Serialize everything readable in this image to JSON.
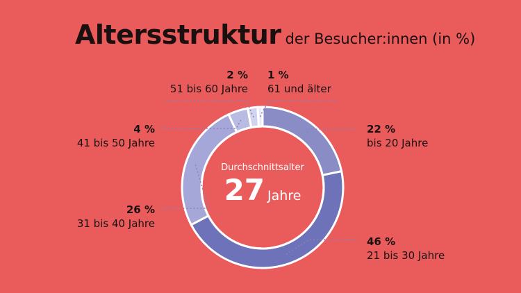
{
  "title": {
    "main": "Altersstruktur",
    "sub": "der Besucher:innen (in %)"
  },
  "center": {
    "caption": "Durchschnittsalter",
    "value": "27",
    "unit": "Jahre"
  },
  "colors": {
    "background": "#ea5c5c",
    "text": "#1a1010"
  },
  "chart_data": {
    "type": "pie",
    "donut": true,
    "unit": "%",
    "categories": [
      "bis 20 Jahre",
      "21 bis 30 Jahre",
      "31 bis 40 Jahre",
      "41 bis 50 Jahre",
      "51 bis 60 Jahre",
      "61 und älter"
    ],
    "values": [
      22,
      46,
      26,
      4,
      2,
      1
    ],
    "labels": [
      "22 %",
      "46 %",
      "26 %",
      "4 %",
      "2 %",
      "1 %"
    ],
    "colors": [
      "#8a8cc6",
      "#6e72b8",
      "#a5a7d8",
      "#b9bbe2",
      "#d2d3ee",
      "#ebebf7"
    ],
    "start": "top",
    "direction": "clockwise"
  }
}
